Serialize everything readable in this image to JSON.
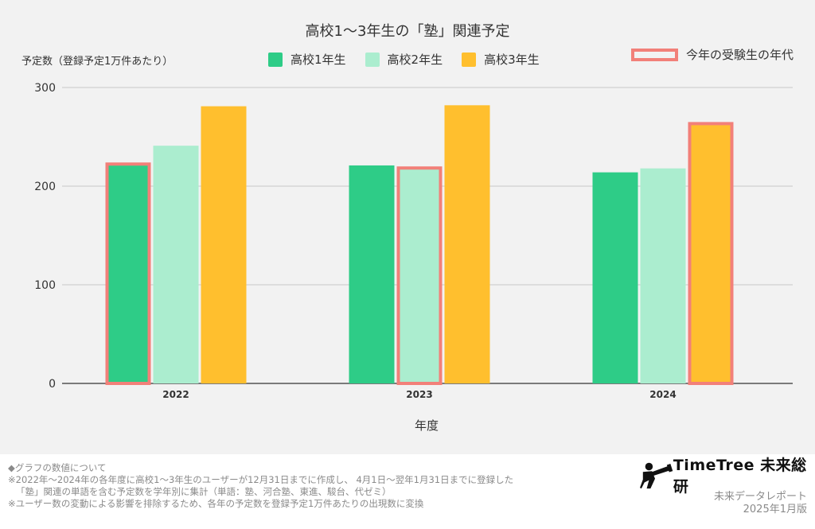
{
  "chart_data": {
    "type": "bar",
    "title": "高校1〜3年生の「塾」関連予定",
    "ylabel": "予定数（登録予定1万件あたり）",
    "xlabel": "年度",
    "categories": [
      "2022",
      "2023",
      "2024"
    ],
    "series": [
      {
        "name": "高校1年生",
        "color": "#2ecc87",
        "values": [
          224,
          221,
          214
        ]
      },
      {
        "name": "高校2年生",
        "color": "#abedcf",
        "values": [
          241,
          220,
          218
        ]
      },
      {
        "name": "高校3年生",
        "color": "#ffbf2e",
        "values": [
          281,
          282,
          265
        ]
      }
    ],
    "ylim": [
      0,
      300
    ],
    "yticks": [
      "0",
      "100",
      "200",
      "300"
    ],
    "grid": true,
    "legend": "top",
    "highlight": {
      "label": "今年の受験生の年代",
      "color": "#f28079",
      "bars": [
        {
          "category": "2022",
          "series": "高校1年生"
        },
        {
          "category": "2023",
          "series": "高校2年生"
        },
        {
          "category": "2024",
          "series": "高校3年生"
        }
      ]
    }
  },
  "footer": {
    "notes": [
      "◆グラフの数値について",
      "※2022年〜2024年の各年度に高校1〜3年生のユーザーが12月31日までに作成し、 4月1日〜翌年1月31日までに登録した",
      "「塾」関連の単語を含む予定数を学年別に集計（単語：塾、河合塾、東進、駿台、代ゼミ）",
      "※ユーザー数の変動による影響を排除するため、各年の予定数を登録予定1万件あたりの出現数に変換"
    ],
    "brand": "TimeTree 未来総研",
    "report_name": "未来データレポート",
    "edition": "2025年1月版"
  }
}
